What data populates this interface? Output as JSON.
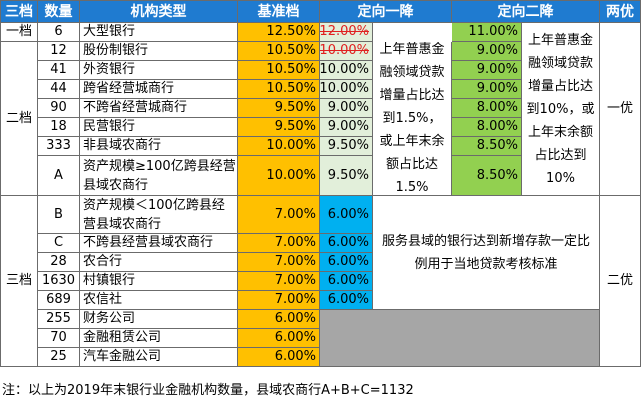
{
  "header": {
    "tier3": "三档",
    "count": "数量",
    "type": "机构类型",
    "base": "基准档",
    "targeted1": "定向一降",
    "targeted2": "定向二降",
    "both": "两优"
  },
  "tiers": {
    "t1": "一档",
    "t2": "二档",
    "t3": "三档"
  },
  "rows": [
    {
      "count": "6",
      "type": "大型银行",
      "base": "12.50%",
      "cut1": "12.00%",
      "cut2": "11.00%"
    },
    {
      "count": "12",
      "type": "股份制银行",
      "base": "10.50%",
      "cut1": "10.00%",
      "cut2": "9.00%"
    },
    {
      "count": "41",
      "type": "外资银行",
      "base": "10.50%",
      "cut1": "10.00%",
      "cut2": "9.00%"
    },
    {
      "count": "44",
      "type": "跨省经营城商行",
      "base": "10.50%",
      "cut1": "10.00%",
      "cut2": "9.00%"
    },
    {
      "count": "90",
      "type": "不跨省经营城商行",
      "base": "9.50%",
      "cut1": "9.00%",
      "cut2": "8.00%"
    },
    {
      "count": "18",
      "type": "民营银行",
      "base": "9.50%",
      "cut1": "9.00%",
      "cut2": "8.00%"
    },
    {
      "count": "333",
      "type": "非县域农商行",
      "base": "10.00%",
      "cut1": "9.50%",
      "cut2": "8.50%"
    },
    {
      "count": "A",
      "type": "资产规模≥100亿跨县经营县域农商行",
      "base": "10.00%",
      "cut1": "9.50%",
      "cut2": "8.50%"
    },
    {
      "count": "B",
      "type": "资产规模＜100亿跨县经营县域农商行",
      "base": "7.00%",
      "cut1": "6.00%"
    },
    {
      "count": "C",
      "type": "不跨县经营县域农商行",
      "base": "7.00%",
      "cut1": "6.00%"
    },
    {
      "count": "28",
      "type": "农合行",
      "base": "7.00%",
      "cut1": "6.00%"
    },
    {
      "count": "1630",
      "type": "村镇银行",
      "base": "7.00%",
      "cut1": "6.00%"
    },
    {
      "count": "689",
      "type": "农信社",
      "base": "7.00%",
      "cut1": "6.00%"
    },
    {
      "count": "255",
      "type": "财务公司",
      "base": "6.00%"
    },
    {
      "count": "70",
      "type": "金融租赁公司",
      "base": "6.00%"
    },
    {
      "count": "25",
      "type": "汽车金融公司",
      "base": "6.00%"
    }
  ],
  "notes": {
    "cut1_rule": "上年普惠金融领域贷款增量占比达到1.5%，或上年末余额占比达1.5%",
    "cut2_rule": "上年普惠金融领域贷款增量占比达到10%，或上年末余额占比达到10%",
    "tier1_both": "一优",
    "tier3_rule": "服务县域的银行达到新增存款一定比例用于当地贷款考核标准",
    "tier3_both": "二优",
    "footer": "注：以上为2019年末银行业金融机构数量，县域农商行A+B+C=1132"
  },
  "colors": {
    "header": "#1f7bd0",
    "base": "#ffc000",
    "cut1_light": "#e2efda",
    "cut2": "#92d050",
    "cut1_tier3": "#00b0f0",
    "unavailable": "#a6a6a6",
    "struck": "#e02020"
  }
}
